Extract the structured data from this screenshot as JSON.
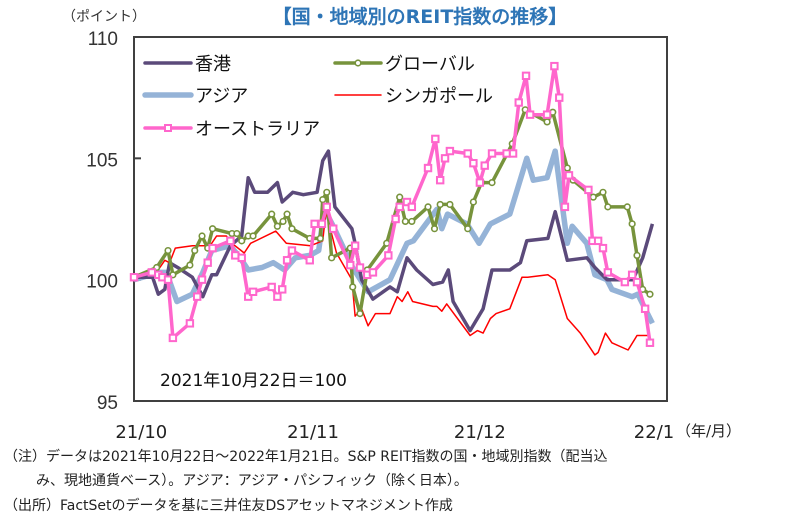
{
  "chart_data": {
    "type": "line",
    "title": "【国・地域別のREIT指数の推移】",
    "ylabel": "（ポイント）",
    "xlabel": "（年/月）",
    "ylim": [
      95,
      110
    ],
    "y_ticks": [
      "95",
      "100",
      "105",
      "110"
    ],
    "y_tick_values": [
      95,
      100,
      105,
      110
    ],
    "x_ticks": [
      {
        "label": "21/10",
        "x": 0.9
      },
      {
        "label": "21/11",
        "x": 22.1
      },
      {
        "label": "21/12",
        "x": 42.7
      },
      {
        "label": "22/1",
        "x": 64.2
      }
    ],
    "xlim": [
      0,
      65
    ],
    "annotation": "2021年10月22日＝100",
    "legend_position": "top-left",
    "series": [
      {
        "name": "香港",
        "color": "#5b4a7a",
        "marker": "none",
        "points": [
          [
            0,
            100.1
          ],
          [
            2.3,
            100.1
          ],
          [
            3,
            99.4
          ],
          [
            3.8,
            99.6
          ],
          [
            4.4,
            100.7
          ],
          [
            5.4,
            100.5
          ],
          [
            7.2,
            100.1
          ],
          [
            8.5,
            99.3
          ],
          [
            9.6,
            100.2
          ],
          [
            10.2,
            100.2
          ],
          [
            11.9,
            101.4
          ],
          [
            13.3,
            101.8
          ],
          [
            14.1,
            104.2
          ],
          [
            14.9,
            103.6
          ],
          [
            16.5,
            103.6
          ],
          [
            17.7,
            104.0
          ],
          [
            18.3,
            103.2
          ],
          [
            19.6,
            103.6
          ],
          [
            20.9,
            103.5
          ],
          [
            22.6,
            103.6
          ],
          [
            23.3,
            104.9
          ],
          [
            24,
            105.3
          ],
          [
            24.8,
            103.0
          ],
          [
            26.9,
            102.1
          ],
          [
            27.3,
            101.5
          ],
          [
            28.1,
            100.0
          ],
          [
            29.5,
            99.2
          ],
          [
            31.6,
            99.7
          ],
          [
            32.5,
            99.5
          ],
          [
            33.7,
            100.9
          ],
          [
            34.9,
            100.4
          ],
          [
            36.9,
            99.8
          ],
          [
            38.1,
            99.9
          ],
          [
            38.8,
            100.4
          ],
          [
            39.4,
            99.1
          ],
          [
            41.5,
            97.9
          ],
          [
            43.1,
            98.8
          ],
          [
            44.2,
            100.4
          ],
          [
            46.4,
            100.4
          ],
          [
            47.7,
            100.7
          ],
          [
            48.5,
            101.6
          ],
          [
            51.1,
            101.7
          ],
          [
            52,
            102.8
          ],
          [
            53.5,
            100.8
          ],
          [
            55.9,
            100.9
          ],
          [
            56.9,
            100.5
          ],
          [
            58.4,
            100.0
          ],
          [
            61.6,
            100.0
          ],
          [
            62.8,
            100.9
          ],
          [
            64,
            102.3
          ]
        ]
      },
      {
        "name": "グローバル",
        "color": "#77933c",
        "marker": "circle",
        "points": [
          [
            0,
            100.1
          ],
          [
            2.8,
            100.5
          ],
          [
            4.2,
            101.2
          ],
          [
            4.8,
            100.2
          ],
          [
            6.9,
            100.6
          ],
          [
            7.5,
            101.2
          ],
          [
            8.4,
            101.8
          ],
          [
            9.1,
            101.3
          ],
          [
            9.7,
            102.1
          ],
          [
            12.1,
            101.9
          ],
          [
            12.7,
            101.9
          ],
          [
            13.3,
            101.6
          ],
          [
            14.1,
            101.8
          ],
          [
            14.7,
            101.8
          ],
          [
            17,
            102.7
          ],
          [
            17.7,
            102.2
          ],
          [
            18.4,
            102.4
          ],
          [
            18.9,
            102.7
          ],
          [
            19.5,
            102.1
          ],
          [
            21.7,
            101.7
          ],
          [
            23,
            101.7
          ],
          [
            23.3,
            103.3
          ],
          [
            23.8,
            103.6
          ],
          [
            24.4,
            100.9
          ],
          [
            26.7,
            101.3
          ],
          [
            27,
            99.7
          ],
          [
            27.9,
            98.6
          ],
          [
            28.8,
            100.4
          ],
          [
            31.2,
            101.5
          ],
          [
            32.8,
            103.4
          ],
          [
            33.5,
            102.4
          ],
          [
            34.3,
            102.4
          ],
          [
            36.3,
            103.0
          ],
          [
            37.1,
            102.1
          ],
          [
            37.8,
            103.1
          ],
          [
            39,
            103.1
          ],
          [
            41.2,
            102.1
          ],
          [
            41.9,
            103.2
          ],
          [
            42.9,
            104.0
          ],
          [
            44.2,
            104.0
          ],
          [
            46.7,
            105.6
          ],
          [
            48.3,
            107.0
          ],
          [
            51,
            106.5
          ],
          [
            51.7,
            106.9
          ],
          [
            53.5,
            104.6
          ],
          [
            54.2,
            104.1
          ],
          [
            56.7,
            103.4
          ],
          [
            57.9,
            103.6
          ],
          [
            58.5,
            103.0
          ],
          [
            60.9,
            103.0
          ],
          [
            61.5,
            102.3
          ],
          [
            62.1,
            101.0
          ],
          [
            62.8,
            99.6
          ],
          [
            63.7,
            99.4
          ]
        ]
      },
      {
        "name": "アジア",
        "color": "#95b3d7",
        "marker": "none",
        "points": [
          [
            0,
            100.0
          ],
          [
            3.2,
            100.3
          ],
          [
            4,
            100.3
          ],
          [
            5.3,
            99.1
          ],
          [
            7.2,
            99.4
          ],
          [
            8.5,
            100.3
          ],
          [
            9.6,
            101.2
          ],
          [
            11.9,
            101.4
          ],
          [
            13.1,
            100.9
          ],
          [
            14.1,
            100.4
          ],
          [
            15.8,
            100.5
          ],
          [
            17.2,
            100.7
          ],
          [
            18.6,
            100.4
          ],
          [
            19.9,
            100.9
          ],
          [
            21.7,
            101.0
          ],
          [
            22.8,
            101.2
          ],
          [
            23.5,
            102.9
          ],
          [
            24.6,
            102.2
          ],
          [
            27,
            100.5
          ],
          [
            28.9,
            99.5
          ],
          [
            31.6,
            100.0
          ],
          [
            33.7,
            101.5
          ],
          [
            34.5,
            101.6
          ],
          [
            37.4,
            102.9
          ],
          [
            38,
            102.1
          ],
          [
            38.7,
            102.7
          ],
          [
            41.1,
            102.3
          ],
          [
            42.6,
            101.5
          ],
          [
            44,
            102.3
          ],
          [
            46.4,
            102.7
          ],
          [
            48.5,
            105.0
          ],
          [
            49.3,
            104.1
          ],
          [
            51,
            104.2
          ],
          [
            52,
            105.3
          ],
          [
            53.5,
            101.5
          ],
          [
            54.1,
            102.2
          ],
          [
            55.9,
            101.5
          ],
          [
            56.9,
            100.2
          ],
          [
            58.4,
            100.0
          ],
          [
            59,
            99.6
          ],
          [
            61.5,
            99.3
          ],
          [
            62.2,
            99.4
          ],
          [
            64,
            98.2
          ]
        ]
      },
      {
        "name": "シンガポール",
        "color": "#ff0000",
        "marker": "none",
        "points": [
          [
            0,
            100.1
          ],
          [
            3.2,
            100.5
          ],
          [
            3.8,
            100.8
          ],
          [
            4.4,
            100.7
          ],
          [
            5.1,
            101.3
          ],
          [
            7.2,
            101.4
          ],
          [
            9.4,
            101.4
          ],
          [
            10.2,
            101.8
          ],
          [
            11.4,
            101.8
          ],
          [
            12.1,
            101.5
          ],
          [
            13.6,
            101.1
          ],
          [
            14.4,
            101.5
          ],
          [
            17.5,
            102.0
          ],
          [
            18.8,
            101.5
          ],
          [
            21.8,
            101.4
          ],
          [
            23.3,
            101.6
          ],
          [
            23.7,
            102.8
          ],
          [
            25,
            101.1
          ],
          [
            26.9,
            100.0
          ],
          [
            27.3,
            98.5
          ],
          [
            28.1,
            98.8
          ],
          [
            28.9,
            98.1
          ],
          [
            29.8,
            98.6
          ],
          [
            31.6,
            98.6
          ],
          [
            32.5,
            99.3
          ],
          [
            33.1,
            99.1
          ],
          [
            33.8,
            99.5
          ],
          [
            34.4,
            99.1
          ],
          [
            36.9,
            98.9
          ],
          [
            37.4,
            98.9
          ],
          [
            38,
            98.7
          ],
          [
            38.6,
            99.0
          ],
          [
            41.5,
            97.7
          ],
          [
            42.4,
            97.9
          ],
          [
            43.1,
            97.8
          ],
          [
            44,
            98.4
          ],
          [
            44.7,
            98.6
          ],
          [
            46.4,
            98.8
          ],
          [
            47.9,
            100.1
          ],
          [
            48.6,
            100.1
          ],
          [
            51.1,
            100.2
          ],
          [
            52,
            100.0
          ],
          [
            53.5,
            98.4
          ],
          [
            55.1,
            97.8
          ],
          [
            56.9,
            96.9
          ],
          [
            57.3,
            97.0
          ],
          [
            58.2,
            97.8
          ],
          [
            59,
            97.4
          ],
          [
            61,
            97.1
          ],
          [
            62.1,
            97.7
          ],
          [
            63.7,
            97.7
          ]
        ]
      },
      {
        "name": "オーストラリア",
        "color": "#ff66cc",
        "marker": "square",
        "points": [
          [
            0,
            100.1
          ],
          [
            2.2,
            100.3
          ],
          [
            3,
            100.2
          ],
          [
            3.5,
            100.1
          ],
          [
            4.2,
            100.0
          ],
          [
            4.8,
            97.6
          ],
          [
            6.9,
            98.2
          ],
          [
            7.8,
            99.3
          ],
          [
            8.4,
            100.0
          ],
          [
            9.1,
            100.7
          ],
          [
            9.7,
            101.3
          ],
          [
            11.9,
            101.6
          ],
          [
            12.5,
            101.0
          ],
          [
            13.3,
            100.9
          ],
          [
            14.1,
            99.3
          ],
          [
            14.7,
            99.5
          ],
          [
            17,
            99.7
          ],
          [
            17.7,
            99.3
          ],
          [
            18.3,
            99.6
          ],
          [
            18.9,
            100.8
          ],
          [
            19.5,
            101.2
          ],
          [
            21.7,
            100.8
          ],
          [
            22.3,
            102.3
          ],
          [
            23.2,
            102.3
          ],
          [
            23.8,
            103.0
          ],
          [
            24.6,
            102.1
          ],
          [
            26.7,
            100.6
          ],
          [
            27.3,
            101.4
          ],
          [
            27.9,
            100.5
          ],
          [
            28.8,
            100.2
          ],
          [
            29.5,
            100.3
          ],
          [
            31.4,
            101.0
          ],
          [
            32.3,
            102.5
          ],
          [
            32.8,
            103.0
          ],
          [
            33.7,
            103.2
          ],
          [
            34.3,
            103.0
          ],
          [
            36.3,
            104.6
          ],
          [
            37.2,
            105.8
          ],
          [
            37.8,
            104.1
          ],
          [
            38.4,
            105.0
          ],
          [
            39,
            105.3
          ],
          [
            41.2,
            105.2
          ],
          [
            41.9,
            104.8
          ],
          [
            42.7,
            104.0
          ],
          [
            43.3,
            104.7
          ],
          [
            44.2,
            105.2
          ],
          [
            46,
            105.2
          ],
          [
            46.8,
            105.2
          ],
          [
            47.5,
            107.3
          ],
          [
            48.4,
            108.4
          ],
          [
            48.9,
            106.8
          ],
          [
            51,
            106.8
          ],
          [
            51.9,
            108.8
          ],
          [
            52.5,
            107.5
          ],
          [
            53.2,
            103.0
          ],
          [
            53.7,
            104.3
          ],
          [
            56.1,
            103.7
          ],
          [
            56.6,
            101.6
          ],
          [
            57.3,
            101.6
          ],
          [
            57.9,
            101.3
          ],
          [
            58.5,
            100.3
          ],
          [
            60.6,
            99.9
          ],
          [
            61.5,
            100.2
          ],
          [
            62.1,
            99.9
          ],
          [
            63.1,
            98.8
          ],
          [
            63.7,
            97.4
          ]
        ]
      }
    ]
  },
  "notes": [
    "（注）データは2021年10月22日～2022年1月21日。S&P REIT指数の国・地域別指数（配当込",
    "み、現地通貨ベース）。アジア：アジア・パシフィック（除く日本）。",
    "（出所）FactSetのデータを基に三井住友DSアセットマネジメント作成"
  ]
}
